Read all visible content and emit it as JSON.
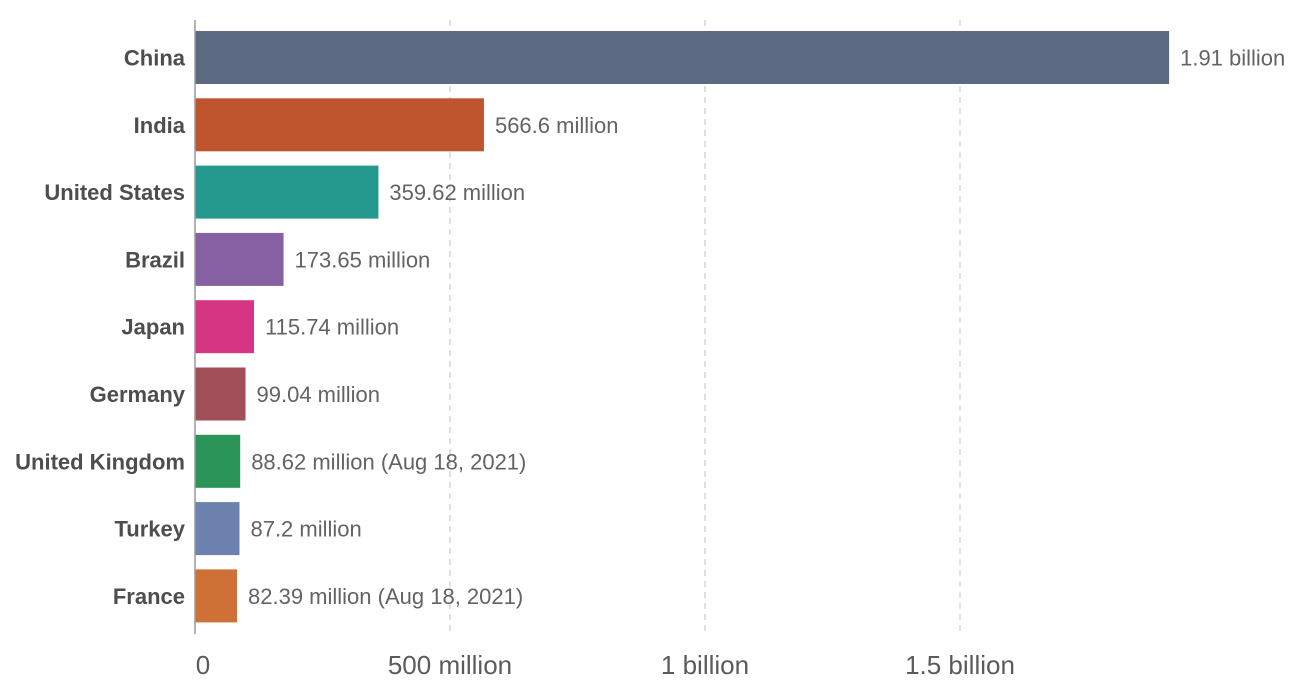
{
  "chart_data": {
    "type": "bar",
    "orientation": "horizontal",
    "categories": [
      "China",
      "India",
      "United States",
      "Brazil",
      "Japan",
      "Germany",
      "United Kingdom",
      "Turkey",
      "France"
    ],
    "values": [
      1910000000,
      566600000,
      359620000,
      173650000,
      115740000,
      99040000,
      88620000,
      87200000,
      82390000
    ],
    "value_labels": [
      "1.91 billion",
      "566.6 million",
      "359.62 million",
      "173.65 million",
      "115.74 million",
      "99.04 million",
      "88.62 million (Aug 18, 2021)",
      "87.2 million",
      "82.39 million (Aug 18, 2021)"
    ],
    "colors": [
      "#5b6a82",
      "#be552e",
      "#26998f",
      "#8561a3",
      "#d63583",
      "#a04f58",
      "#2a9459",
      "#6c81ad",
      "#cd7137"
    ],
    "x_ticks": [
      {
        "value": 0,
        "label": "0"
      },
      {
        "value": 500000000,
        "label": "500 million"
      },
      {
        "value": 1000000000,
        "label": "1 billion"
      },
      {
        "value": 1500000000,
        "label": "1.5 billion"
      }
    ],
    "xlim": [
      0,
      1910000000
    ],
    "grid": "vertical-dashed",
    "legend": "none",
    "title": "",
    "xlabel": "",
    "ylabel": ""
  }
}
